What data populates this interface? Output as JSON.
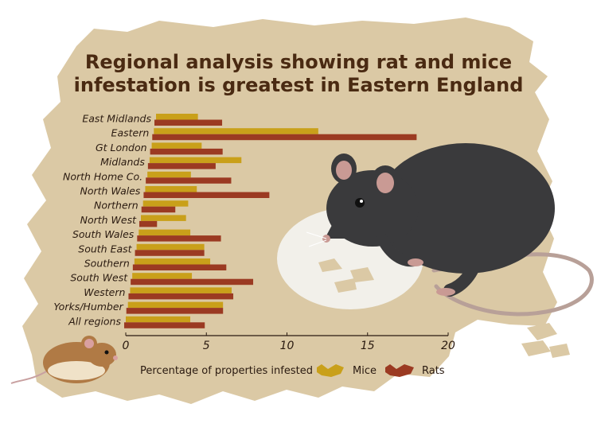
{
  "title_line1": "Regional analysis showing rat and mice",
  "title_line2": "infestation is greatest in Eastern England",
  "legend": {
    "caption": "Percentage of properties infested",
    "mice_label": "Mice",
    "rats_label": "Rats"
  },
  "colors": {
    "mice": "#c9a01a",
    "rats": "#9b3a22",
    "parchment": "#dbc9a5"
  },
  "chart_data": {
    "type": "bar",
    "orientation": "horizontal",
    "title": "Regional analysis showing rat and mice infestation is greatest in Eastern England",
    "xlabel": "Percentage of properties infested",
    "ylabel": "",
    "xlim": [
      0,
      20
    ],
    "xticks": [
      0,
      5,
      10,
      15,
      20
    ],
    "categories": [
      "East Midlands",
      "Eastern",
      "Gt London",
      "Midlands",
      "North Home Co.",
      "North Wales",
      "Northern",
      "North West",
      "South Wales",
      "South East",
      "Southern",
      "South West",
      "Western",
      "Yorks/Humber",
      "All regions"
    ],
    "series": [
      {
        "name": "Mice",
        "values": [
          2.6,
          10.2,
          3.1,
          5.7,
          2.7,
          3.2,
          2.8,
          2.8,
          3.2,
          4.2,
          4.7,
          3.7,
          6.3,
          5.9,
          4.0
        ]
      },
      {
        "name": "Rats",
        "values": [
          4.2,
          16.4,
          4.5,
          4.2,
          5.3,
          7.8,
          2.1,
          1.1,
          5.2,
          4.3,
          5.8,
          7.6,
          6.5,
          6.0,
          5.0
        ]
      }
    ],
    "grid": false,
    "legend_position": "bottom"
  }
}
